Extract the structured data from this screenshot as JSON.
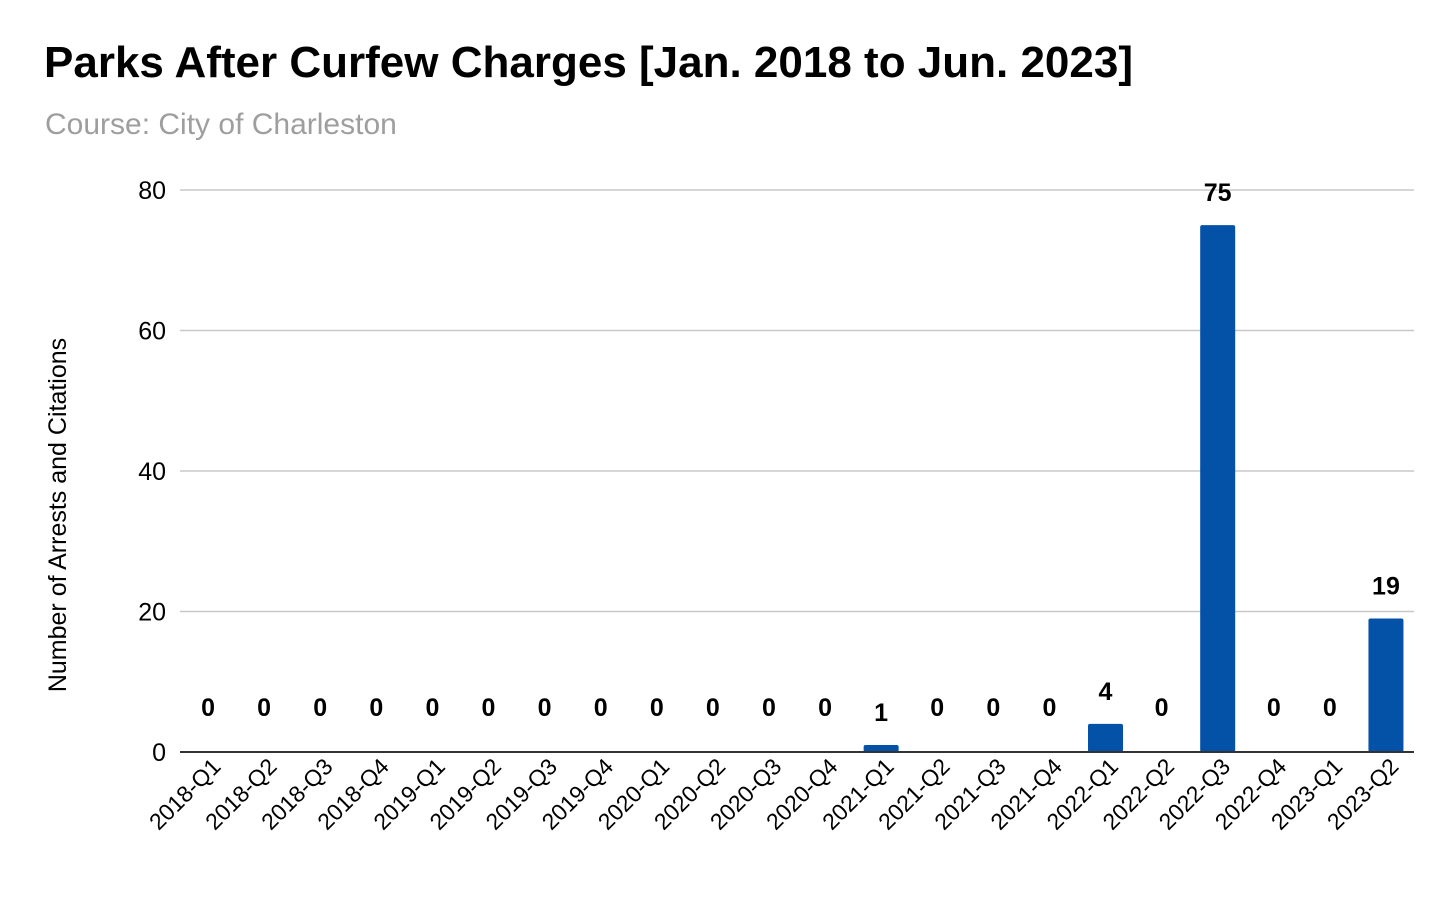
{
  "chart_data": {
    "type": "bar",
    "title": "Parks After Curfew Charges [Jan. 2018 to Jun. 2023]",
    "subtitle": "Course: City of Charleston",
    "xlabel": "",
    "ylabel": "Number of Arrests and Citations",
    "ylim": [
      0,
      80
    ],
    "yticks": [
      0,
      20,
      40,
      60,
      80
    ],
    "grid": true,
    "bar_color": "#0352a8",
    "categories": [
      "2018-Q1",
      "2018-Q2",
      "2018-Q3",
      "2018-Q4",
      "2019-Q1",
      "2019-Q2",
      "2019-Q3",
      "2019-Q4",
      "2020-Q1",
      "2020-Q2",
      "2020-Q3",
      "2020-Q4",
      "2021-Q1",
      "2021-Q2",
      "2021-Q3",
      "2021-Q4",
      "2022-Q1",
      "2022-Q2",
      "2022-Q3",
      "2022-Q4",
      "2023-Q1",
      "2023-Q2"
    ],
    "values": [
      0,
      0,
      0,
      0,
      0,
      0,
      0,
      0,
      0,
      0,
      0,
      0,
      1,
      0,
      0,
      0,
      4,
      0,
      75,
      0,
      0,
      19
    ]
  }
}
